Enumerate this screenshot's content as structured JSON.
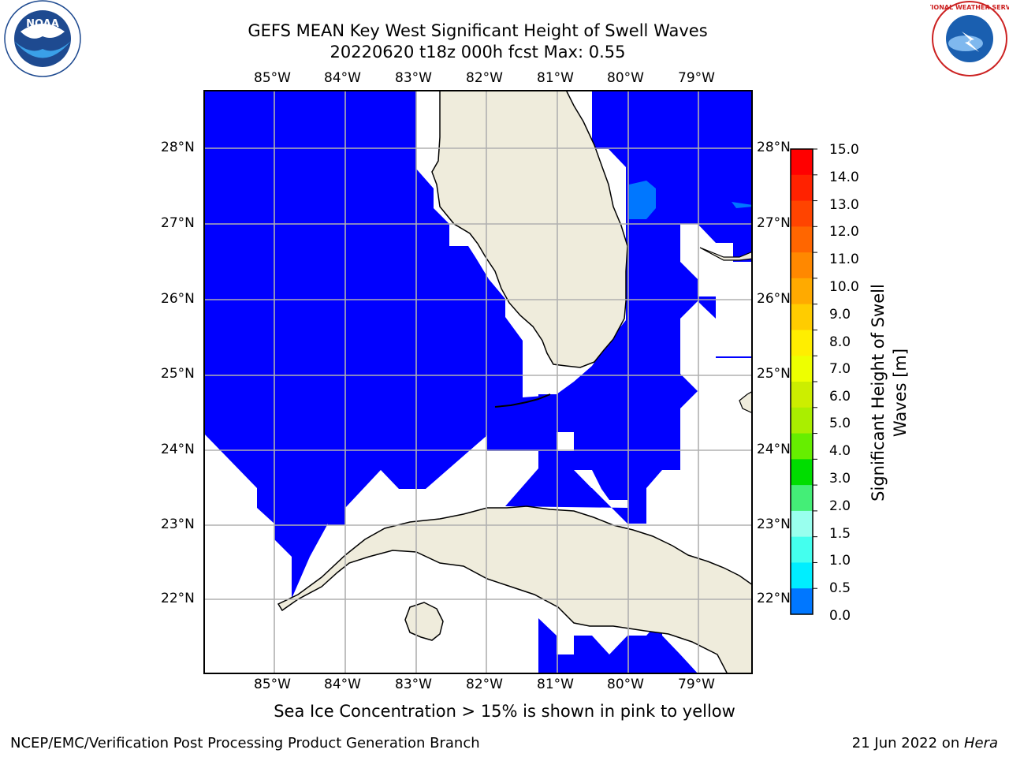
{
  "title": {
    "line1": "GEFS MEAN Key West Significant Height of Swell Waves",
    "line2": "20220620 t18z 000h fcst   Max: 0.55"
  },
  "logos": {
    "noaa": "NOAA",
    "nws": "NATIONAL WEATHER SERVICE"
  },
  "map": {
    "lon_labels": [
      "85°W",
      "84°W",
      "83°W",
      "82°W",
      "81°W",
      "80°W",
      "79°W"
    ],
    "lat_labels": [
      "28°N",
      "27°N",
      "26°N",
      "25°N",
      "24°N",
      "23°N",
      "22°N"
    ],
    "grid": true
  },
  "colorbar": {
    "label_line1": "Significant Height of Swell",
    "label_line2": "Waves [m]",
    "ticks": [
      "15.0",
      "14.0",
      "13.0",
      "12.0",
      "11.0",
      "10.0",
      "9.0",
      "8.0",
      "7.0",
      "6.0",
      "5.0",
      "4.0",
      "3.0",
      "2.0",
      "1.5",
      "1.0",
      "0.5",
      "0.0"
    ],
    "colors": [
      "#ff0000",
      "#ff2200",
      "#ff4400",
      "#ff6600",
      "#ff8800",
      "#ffaa00",
      "#ffcc00",
      "#ffee00",
      "#eeff00",
      "#ccee00",
      "#aaee00",
      "#66ee00",
      "#00dd00",
      "#44ee77",
      "#99ffee",
      "#44ffee",
      "#00eeff",
      "#0077ff",
      "#0000ff"
    ]
  },
  "caption": "Sea Ice Concentration > 15% is shown in pink to yellow",
  "footer": {
    "left": "NCEP/EMC/Verification Post Processing Product Generation Branch",
    "right_prefix": "21 Jun 2022 on ",
    "right_host": "Hera"
  }
}
